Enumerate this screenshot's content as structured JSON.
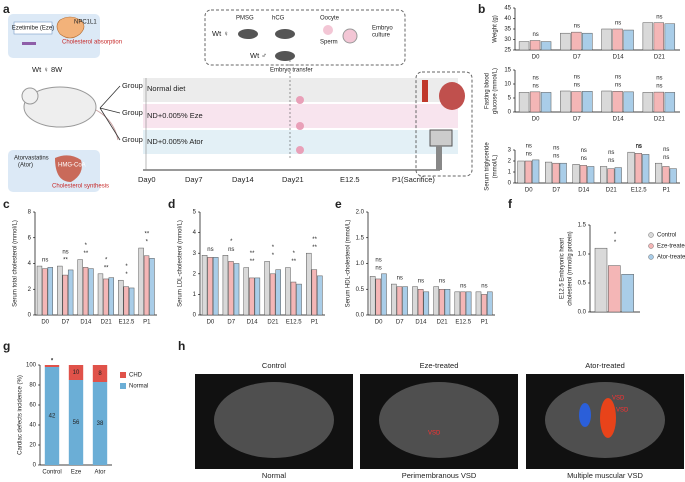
{
  "panels": {
    "a": "a",
    "b": "b",
    "c": "c",
    "d": "d",
    "e": "e",
    "f": "f",
    "g": "g",
    "h": "h"
  },
  "diagram": {
    "eze": "Ezetimibe (Eze)",
    "npc": "NPC1L1",
    "absorption": "Cholesterol absorption",
    "mouse": "Wt ♀ 8W",
    "group1": "Group1",
    "group2": "Group2",
    "group3": "Group3",
    "diet1": "Normal diet",
    "diet2": "ND+0.005% Eze",
    "diet3": "ND+0.005% Ator",
    "ator1": "Atorvastatins",
    "ator2": "(Ator)",
    "hmg": "HMG-CoA",
    "synthesis": "Cholesterol synthesis",
    "pmsg": "PMSG",
    "hcg": "hCG",
    "oocyte": "Oocyte",
    "sperm": "Sperm",
    "culture1": "Embryo",
    "culture2": "culture",
    "wtf": "Wt ♀",
    "wtm": "Wt ♂",
    "transfer": "Embryo transfer",
    "timeline": [
      "Day0",
      "Day7",
      "Day14",
      "Day21",
      "E12.5",
      "P1(Sacrifice)"
    ]
  },
  "chart_data": [
    {
      "type": "bar",
      "ylabel": "Weight (g)",
      "categories": [
        "D0",
        "D7",
        "D14",
        "D21"
      ],
      "series": [
        {
          "color": "#d9d9d9",
          "values": [
            29,
            33,
            35,
            38
          ]
        },
        {
          "color": "#f4b6b6",
          "values": [
            29.5,
            33.5,
            35,
            38
          ]
        },
        {
          "color": "#a9cde8",
          "values": [
            29,
            33,
            34.5,
            37.5
          ]
        }
      ],
      "ylim": [
        25,
        45
      ],
      "yticks": [
        25,
        30,
        35,
        40,
        45
      ],
      "sig": [
        [
          "ns"
        ],
        [
          "ns"
        ],
        [
          "ns"
        ],
        [
          "ns"
        ]
      ]
    },
    {
      "type": "bar",
      "ylabel": [
        "Fasting blood",
        "glucose (mmol/L)"
      ],
      "categories": [
        "D0",
        "D7",
        "D14",
        "D21"
      ],
      "series": [
        {
          "color": "#d9d9d9",
          "values": [
            7,
            7.5,
            7.5,
            7
          ]
        },
        {
          "color": "#f4b6b6",
          "values": [
            7.2,
            7.3,
            7.4,
            7.1
          ]
        },
        {
          "color": "#a9cde8",
          "values": [
            7,
            7.4,
            7.2,
            7
          ]
        }
      ],
      "ylim": [
        0,
        15
      ],
      "yticks": [
        0,
        5,
        10,
        15
      ],
      "sig": [
        [
          "ns",
          "ns"
        ],
        [
          "ns",
          "ns"
        ],
        [
          "ns",
          "ns"
        ],
        [
          "ns",
          "ns"
        ]
      ]
    },
    {
      "type": "bar",
      "ylabel": [
        "Serum triglyceride",
        "(mmol/L)"
      ],
      "categories": [
        "D0",
        "D7",
        "D14",
        "D21",
        "E12.5",
        "P1"
      ],
      "series": [
        {
          "color": "#d9d9d9",
          "values": [
            2.0,
            1.9,
            1.7,
            1.5,
            2.8,
            1.8
          ]
        },
        {
          "color": "#f4b6b6",
          "values": [
            2.0,
            1.8,
            1.6,
            1.3,
            2.7,
            1.5
          ]
        },
        {
          "color": "#a9cde8",
          "values": [
            2.1,
            1.8,
            1.5,
            1.4,
            2.6,
            1.3
          ]
        }
      ],
      "ylim": [
        0,
        3
      ],
      "yticks": [
        0,
        1,
        2,
        3
      ],
      "sig": [
        [
          "ns",
          "ns"
        ],
        [
          "ns",
          "ns"
        ],
        [
          "ns",
          "ns"
        ],
        [
          "ns",
          "ns"
        ],
        [
          "ns",
          "ns"
        ],
        [
          "ns",
          "ns"
        ]
      ]
    },
    {
      "type": "bar",
      "ylabel": "Serum total cholesterol (mmol/L)",
      "categories": [
        "D0",
        "D7",
        "D14",
        "D21",
        "E12.5",
        "P1"
      ],
      "series": [
        {
          "color": "#d9d9d9",
          "values": [
            3.8,
            3.8,
            4.3,
            3.2,
            2.7,
            5.2
          ]
        },
        {
          "color": "#f4b6b6",
          "values": [
            3.6,
            3.1,
            3.7,
            2.8,
            2.2,
            4.6
          ]
        },
        {
          "color": "#a9cde8",
          "values": [
            3.7,
            3.5,
            3.6,
            2.9,
            2.1,
            4.4
          ]
        }
      ],
      "ylim": [
        0,
        8
      ],
      "yticks": [
        0,
        2,
        4,
        6,
        8
      ],
      "sig": [
        [
          "ns"
        ],
        [
          "**",
          "ns"
        ],
        [
          "**",
          "*"
        ],
        [
          "**",
          "*"
        ],
        [
          "*",
          "*"
        ],
        [
          "*",
          "**"
        ]
      ]
    },
    {
      "type": "bar",
      "ylabel": "Serum LDL-cholesterol (mmol/L)",
      "categories": [
        "D0",
        "D7",
        "D14",
        "D21",
        "E12.5",
        "P1"
      ],
      "series": [
        {
          "color": "#d9d9d9",
          "values": [
            2.9,
            2.9,
            2.3,
            2.6,
            2.3,
            3.0
          ]
        },
        {
          "color": "#f4b6b6",
          "values": [
            2.8,
            2.6,
            1.8,
            2.0,
            1.6,
            2.2
          ]
        },
        {
          "color": "#a9cde8",
          "values": [
            2.8,
            2.5,
            1.8,
            2.2,
            1.5,
            1.9
          ]
        }
      ],
      "ylim": [
        0,
        5
      ],
      "yticks": [
        0,
        1,
        2,
        3,
        4,
        5
      ],
      "sig": [
        [
          "ns"
        ],
        [
          "ns",
          "*"
        ],
        [
          "**",
          "**"
        ],
        [
          "*",
          "*"
        ],
        [
          "**",
          "*"
        ],
        [
          "**",
          "**"
        ]
      ]
    },
    {
      "type": "bar",
      "ylabel": "Serum HDL-cholesterol (mmol/L)",
      "categories": [
        "D0",
        "D7",
        "D14",
        "D21",
        "E12.5",
        "P1"
      ],
      "series": [
        {
          "color": "#d9d9d9",
          "values": [
            0.75,
            0.6,
            0.55,
            0.55,
            0.45,
            0.45
          ]
        },
        {
          "color": "#f4b6b6",
          "values": [
            0.7,
            0.55,
            0.5,
            0.5,
            0.45,
            0.4
          ]
        },
        {
          "color": "#a9cde8",
          "values": [
            0.8,
            0.55,
            0.45,
            0.5,
            0.45,
            0.45
          ]
        }
      ],
      "ylim": [
        0,
        2
      ],
      "yticks": [
        {
          "value": 0,
          "label": "0.0"
        },
        {
          "value": 0.5,
          "label": "0.5"
        },
        {
          "value": 1,
          "label": "1.0"
        },
        {
          "value": 1.5,
          "label": "1.5"
        },
        {
          "value": 2,
          "label": "2.0"
        }
      ],
      "sig": [
        [
          "ns",
          "ns"
        ],
        [
          "ns"
        ],
        [
          "ns"
        ],
        [
          "ns"
        ],
        [
          "ns"
        ],
        [
          "ns"
        ]
      ]
    },
    {
      "type": "bar",
      "ylabel": [
        "E12.5 Embryonic heart",
        "cholesterol (mmol/g protein)"
      ],
      "series": [
        {
          "name": "Control",
          "color": "#d9d9d9",
          "values": [
            1.1
          ]
        },
        {
          "name": "Eze-treated",
          "color": "#f4b6b6",
          "values": [
            0.8
          ]
        },
        {
          "name": "Ator-treated",
          "color": "#a9cde8",
          "values": [
            0.65
          ]
        }
      ],
      "ylim": [
        0,
        1.5
      ],
      "yticks": [
        {
          "value": 0,
          "label": "0.0"
        },
        {
          "value": 0.5,
          "label": "0.5"
        },
        {
          "value": 1,
          "label": "1.0"
        },
        {
          "value": 1.5,
          "label": "1.5"
        }
      ],
      "sig": [
        [
          "*",
          "*"
        ]
      ],
      "legend": "right"
    },
    {
      "type": "stacked_bar",
      "ylabel": "Cardiac defects incidence (%)",
      "categories": [
        "Control",
        "Eze",
        "Ator"
      ],
      "series": [
        {
          "name": "CHD",
          "color": "#e0524a",
          "values": [
            2,
            15,
            17
          ],
          "counts": [
            null,
            10,
            8
          ]
        },
        {
          "name": "Normal",
          "color": "#6baed6",
          "values": [
            98,
            85,
            83
          ],
          "counts": [
            42,
            56,
            38
          ]
        }
      ],
      "ylim": [
        0,
        100
      ],
      "yticks": [
        0,
        20,
        40,
        60,
        80,
        100
      ],
      "sig": [
        [
          "*",
          "*"
        ]
      ],
      "legend": "right"
    }
  ],
  "images": {
    "titles": [
      "Control",
      "Eze-treated",
      "Ator-treated"
    ],
    "captions": [
      "Normal",
      "Perimembranous VSD",
      "Multiple muscular VSD"
    ],
    "marks": [
      "VSD",
      "VSD",
      "VSD"
    ]
  }
}
